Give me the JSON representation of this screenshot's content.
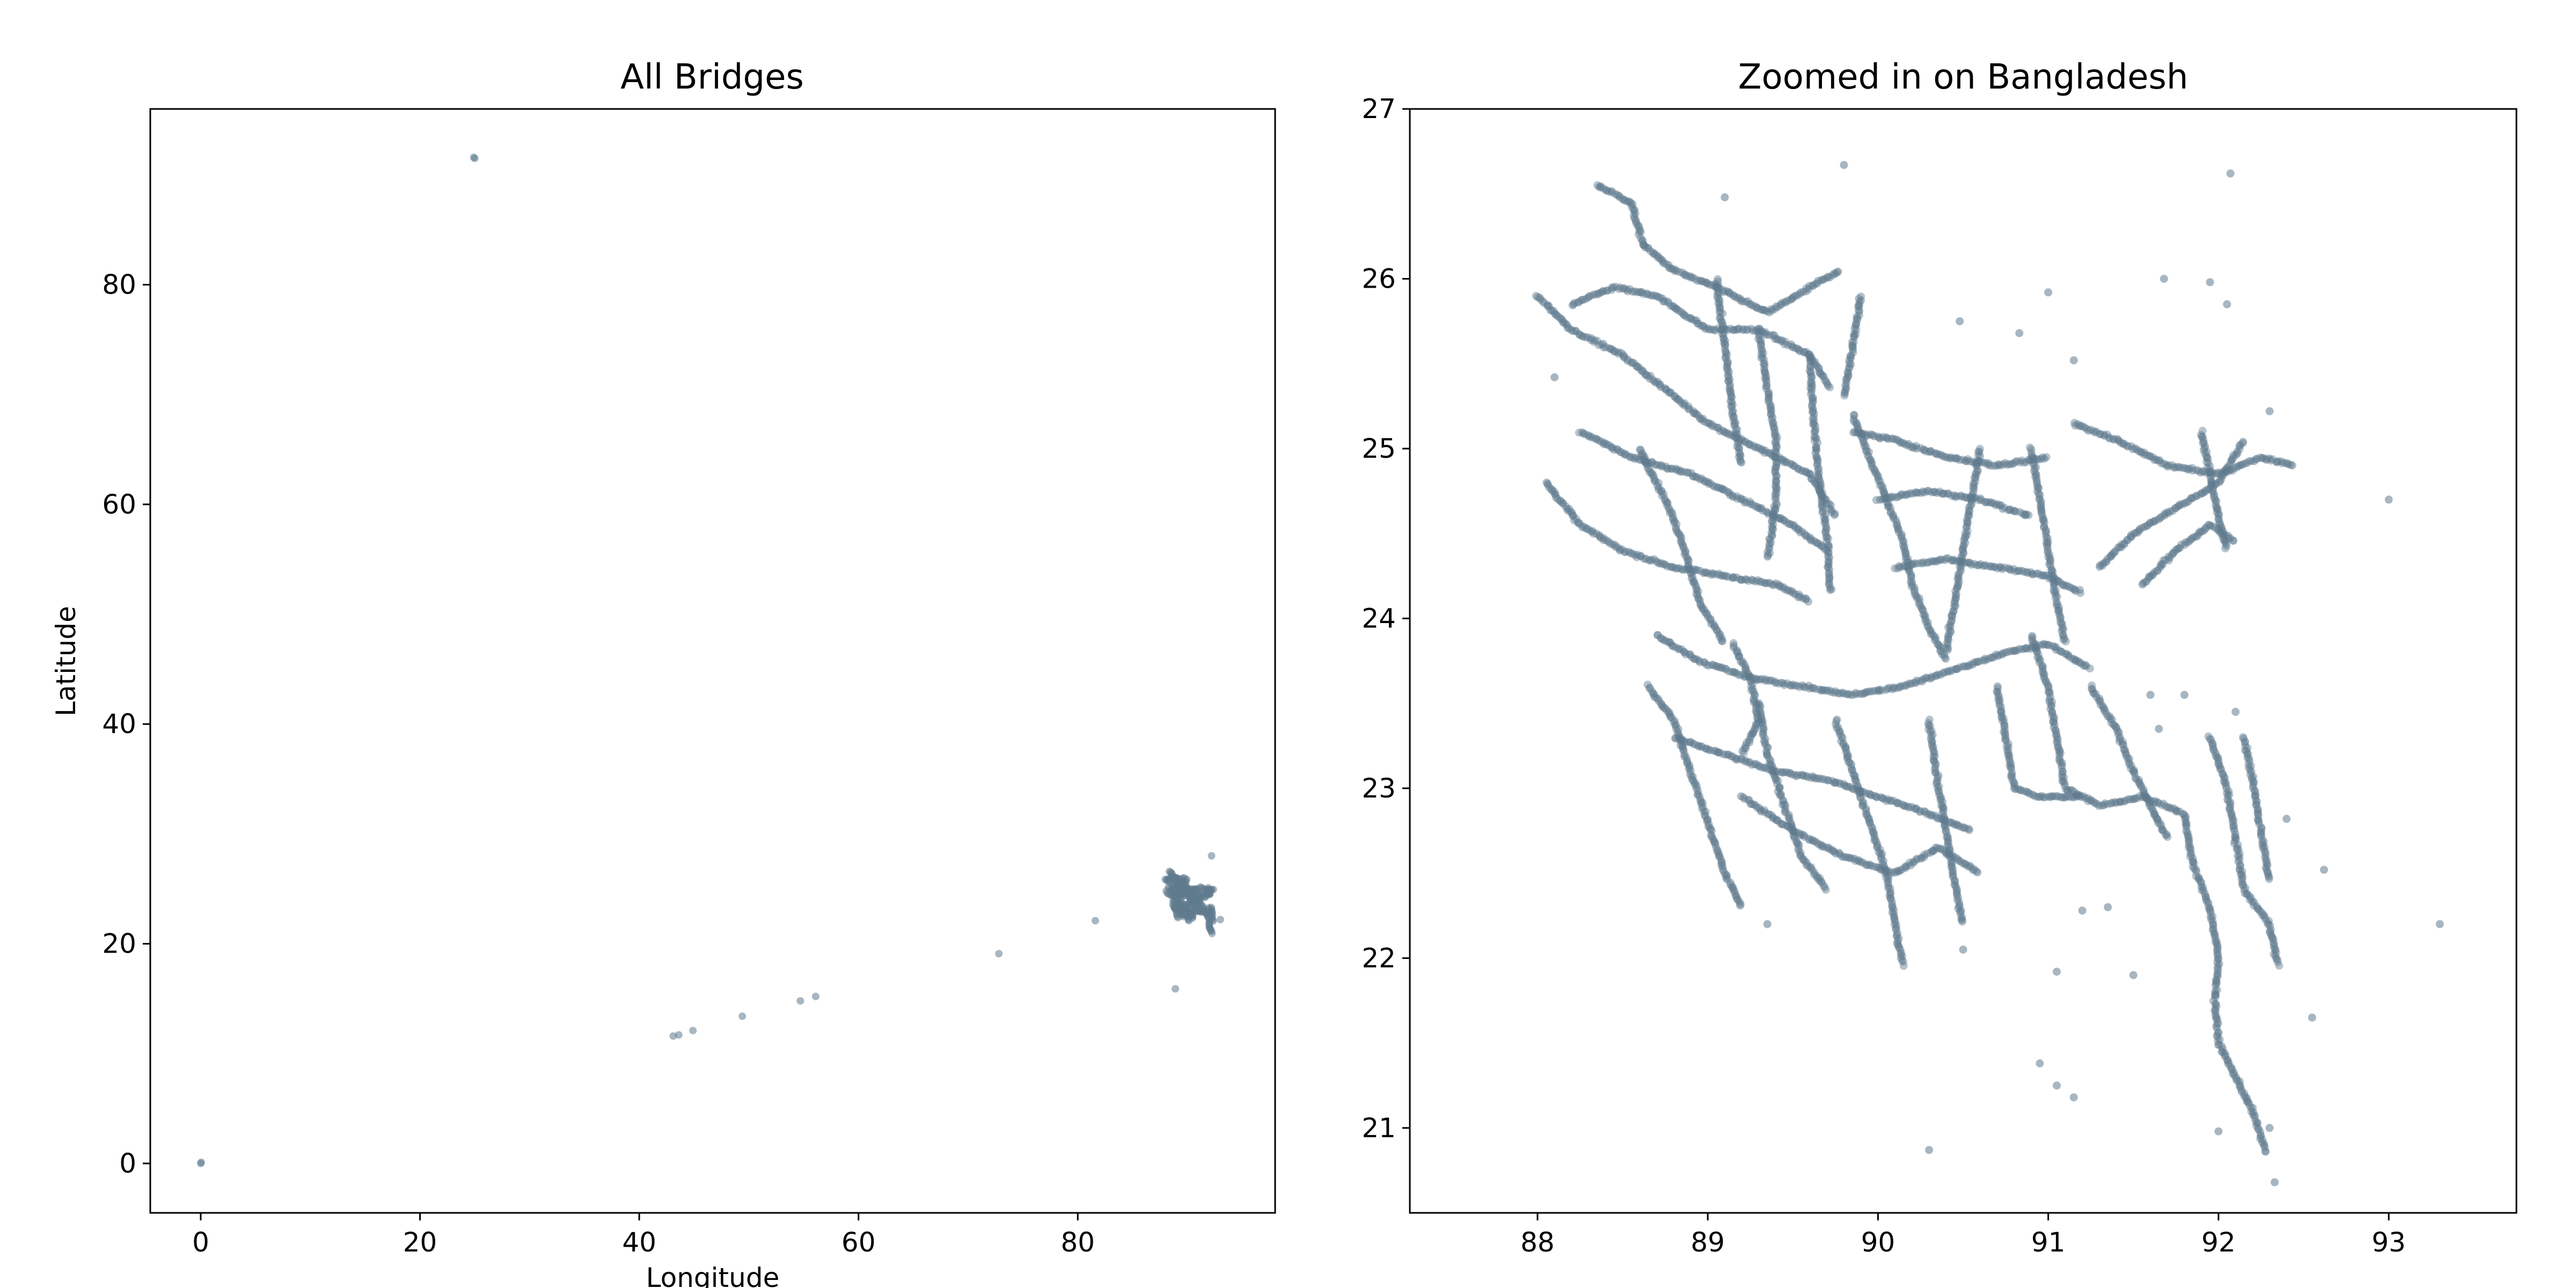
{
  "marker_color": "#5f7a8e",
  "chart_data": [
    {
      "type": "scatter",
      "title": "All Bridges",
      "xlabel": "Longitude",
      "ylabel": "Latitude",
      "xlim": [
        -4.6,
        98.0
      ],
      "ylim": [
        -4.5,
        96.0
      ],
      "xticks": [
        0,
        20,
        40,
        60,
        80
      ],
      "yticks": [
        0,
        20,
        40,
        60,
        80
      ],
      "grid": false,
      "outliers": [
        {
          "x": 0.0,
          "y": 0.0
        },
        {
          "x": 0.05,
          "y": 0.1
        },
        {
          "x": 24.9,
          "y": 91.6
        },
        {
          "x": 25.0,
          "y": 91.5
        },
        {
          "x": 43.1,
          "y": 11.6
        },
        {
          "x": 43.6,
          "y": 11.7
        },
        {
          "x": 44.9,
          "y": 12.1
        },
        {
          "x": 49.4,
          "y": 13.4
        },
        {
          "x": 54.7,
          "y": 14.8
        },
        {
          "x": 56.1,
          "y": 15.2
        },
        {
          "x": 72.8,
          "y": 19.1
        },
        {
          "x": 81.6,
          "y": 22.1
        },
        {
          "x": 88.9,
          "y": 15.9
        },
        {
          "x": 92.2,
          "y": 28.0
        },
        {
          "x": 93.0,
          "y": 22.2
        }
      ]
    },
    {
      "type": "scatter",
      "title": "Zoomed in on Bangladesh",
      "xlabel": "",
      "ylabel": "",
      "xlim": [
        87.25,
        93.75
      ],
      "ylim": [
        20.5,
        27.0
      ],
      "xticks": [
        88,
        89,
        90,
        91,
        92,
        93
      ],
      "yticks": [
        21,
        22,
        23,
        24,
        25,
        26,
        27
      ],
      "grid": false,
      "road_network": [
        [
          [
            88.35,
            26.55
          ],
          [
            88.55,
            26.45
          ],
          [
            88.62,
            26.2
          ],
          [
            88.8,
            26.05
          ],
          [
            89.05,
            25.95
          ],
          [
            89.35,
            25.8
          ],
          [
            89.6,
            25.95
          ],
          [
            89.78,
            26.05
          ]
        ],
        [
          [
            88.2,
            25.85
          ],
          [
            88.45,
            25.95
          ],
          [
            88.7,
            25.9
          ],
          [
            89.0,
            25.7
          ],
          [
            89.3,
            25.7
          ],
          [
            89.6,
            25.55
          ],
          [
            89.72,
            25.35
          ]
        ],
        [
          [
            88.0,
            25.9
          ],
          [
            88.2,
            25.7
          ],
          [
            88.5,
            25.55
          ],
          [
            88.75,
            25.35
          ],
          [
            89.0,
            25.15
          ],
          [
            89.3,
            25.0
          ],
          [
            89.6,
            24.85
          ],
          [
            89.75,
            24.6
          ]
        ],
        [
          [
            88.25,
            25.1
          ],
          [
            88.55,
            24.95
          ],
          [
            88.9,
            24.85
          ],
          [
            89.2,
            24.7
          ],
          [
            89.5,
            24.55
          ],
          [
            89.7,
            24.4
          ]
        ],
        [
          [
            88.05,
            24.8
          ],
          [
            88.25,
            24.55
          ],
          [
            88.5,
            24.4
          ],
          [
            88.8,
            24.3
          ],
          [
            89.1,
            24.25
          ],
          [
            89.4,
            24.2
          ],
          [
            89.6,
            24.1
          ]
        ],
        [
          [
            88.6,
            25.0
          ],
          [
            88.75,
            24.7
          ],
          [
            88.85,
            24.45
          ],
          [
            88.95,
            24.1
          ],
          [
            89.1,
            23.85
          ]
        ],
        [
          [
            89.3,
            25.7
          ],
          [
            89.35,
            25.35
          ],
          [
            89.4,
            25.05
          ],
          [
            89.4,
            24.7
          ],
          [
            89.35,
            24.35
          ]
        ],
        [
          [
            89.05,
            26.0
          ],
          [
            89.1,
            25.6
          ],
          [
            89.15,
            25.2
          ],
          [
            89.2,
            24.9
          ]
        ],
        [
          [
            89.6,
            25.55
          ],
          [
            89.62,
            25.2
          ],
          [
            89.65,
            24.85
          ],
          [
            89.7,
            24.5
          ],
          [
            89.72,
            24.15
          ]
        ],
        [
          [
            88.7,
            23.9
          ],
          [
            88.95,
            23.75
          ],
          [
            89.25,
            23.65
          ],
          [
            89.55,
            23.6
          ],
          [
            89.85,
            23.55
          ],
          [
            90.15,
            23.6
          ],
          [
            90.45,
            23.7
          ],
          [
            90.75,
            23.8
          ],
          [
            91.0,
            23.85
          ],
          [
            91.25,
            23.7
          ]
        ],
        [
          [
            88.65,
            23.6
          ],
          [
            88.8,
            23.4
          ],
          [
            88.9,
            23.1
          ],
          [
            89.0,
            22.8
          ],
          [
            89.1,
            22.5
          ],
          [
            89.2,
            22.3
          ]
        ],
        [
          [
            88.8,
            23.3
          ],
          [
            89.1,
            23.2
          ],
          [
            89.4,
            23.1
          ],
          [
            89.7,
            23.05
          ],
          [
            90.0,
            22.95
          ],
          [
            90.3,
            22.85
          ],
          [
            90.55,
            22.75
          ]
        ],
        [
          [
            89.3,
            23.5
          ],
          [
            89.35,
            23.2
          ],
          [
            89.45,
            22.9
          ],
          [
            89.55,
            22.6
          ],
          [
            89.7,
            22.4
          ]
        ],
        [
          [
            89.75,
            23.4
          ],
          [
            89.85,
            23.1
          ],
          [
            89.95,
            22.8
          ],
          [
            90.05,
            22.5
          ],
          [
            90.1,
            22.2
          ],
          [
            90.15,
            21.95
          ]
        ],
        [
          [
            89.2,
            22.95
          ],
          [
            89.5,
            22.75
          ],
          [
            89.8,
            22.6
          ],
          [
            90.1,
            22.5
          ],
          [
            90.35,
            22.65
          ],
          [
            90.6,
            22.5
          ]
        ],
        [
          [
            90.3,
            23.4
          ],
          [
            90.35,
            23.05
          ],
          [
            90.4,
            22.75
          ],
          [
            90.45,
            22.45
          ],
          [
            90.5,
            22.2
          ]
        ],
        [
          [
            89.85,
            25.2
          ],
          [
            89.95,
            24.95
          ],
          [
            90.05,
            24.7
          ],
          [
            90.15,
            24.45
          ],
          [
            90.2,
            24.2
          ],
          [
            90.3,
            23.95
          ],
          [
            90.4,
            23.75
          ]
        ],
        [
          [
            89.85,
            25.1
          ],
          [
            90.1,
            25.05
          ],
          [
            90.4,
            24.95
          ],
          [
            90.7,
            24.9
          ],
          [
            91.0,
            24.95
          ]
        ],
        [
          [
            90.0,
            24.7
          ],
          [
            90.3,
            24.75
          ],
          [
            90.6,
            24.7
          ],
          [
            90.9,
            24.6
          ]
        ],
        [
          [
            90.1,
            24.3
          ],
          [
            90.4,
            24.35
          ],
          [
            90.7,
            24.3
          ],
          [
            91.0,
            24.25
          ],
          [
            91.2,
            24.15
          ]
        ],
        [
          [
            90.6,
            25.0
          ],
          [
            90.55,
            24.7
          ],
          [
            90.5,
            24.4
          ],
          [
            90.45,
            24.1
          ],
          [
            90.4,
            23.8
          ]
        ],
        [
          [
            90.9,
            25.0
          ],
          [
            90.95,
            24.7
          ],
          [
            91.0,
            24.4
          ],
          [
            91.05,
            24.1
          ],
          [
            91.1,
            23.85
          ]
        ],
        [
          [
            91.15,
            25.15
          ],
          [
            91.4,
            25.05
          ],
          [
            91.7,
            24.9
          ],
          [
            92.0,
            24.85
          ],
          [
            92.25,
            24.95
          ],
          [
            92.45,
            24.9
          ]
        ],
        [
          [
            91.3,
            24.3
          ],
          [
            91.5,
            24.5
          ],
          [
            91.75,
            24.65
          ],
          [
            92.0,
            24.8
          ],
          [
            92.15,
            25.05
          ]
        ],
        [
          [
            91.55,
            24.2
          ],
          [
            91.75,
            24.4
          ],
          [
            91.95,
            24.55
          ],
          [
            92.1,
            24.45
          ]
        ],
        [
          [
            91.9,
            25.1
          ],
          [
            91.95,
            24.85
          ],
          [
            92.0,
            24.6
          ],
          [
            92.05,
            24.4
          ]
        ],
        [
          [
            90.9,
            23.9
          ],
          [
            91.0,
            23.6
          ],
          [
            91.05,
            23.3
          ],
          [
            91.1,
            23.0
          ],
          [
            91.3,
            22.9
          ],
          [
            91.55,
            22.95
          ],
          [
            91.8,
            22.85
          ]
        ],
        [
          [
            90.7,
            23.6
          ],
          [
            90.75,
            23.3
          ],
          [
            90.8,
            23.0
          ],
          [
            90.95,
            22.95
          ],
          [
            91.2,
            22.95
          ]
        ],
        [
          [
            91.25,
            23.6
          ],
          [
            91.4,
            23.35
          ],
          [
            91.5,
            23.1
          ],
          [
            91.6,
            22.9
          ],
          [
            91.7,
            22.7
          ]
        ],
        [
          [
            91.8,
            22.85
          ],
          [
            91.85,
            22.55
          ],
          [
            91.95,
            22.3
          ],
          [
            92.0,
            22.0
          ],
          [
            91.98,
            21.75
          ],
          [
            92.0,
            21.5
          ],
          [
            92.1,
            21.3
          ],
          [
            92.2,
            21.1
          ],
          [
            92.28,
            20.85
          ]
        ],
        [
          [
            91.95,
            23.3
          ],
          [
            92.05,
            23.0
          ],
          [
            92.1,
            22.7
          ],
          [
            92.15,
            22.4
          ],
          [
            92.3,
            22.2
          ],
          [
            92.35,
            21.95
          ]
        ],
        [
          [
            92.15,
            23.3
          ],
          [
            92.2,
            23.05
          ],
          [
            92.25,
            22.75
          ],
          [
            92.3,
            22.45
          ]
        ],
        [
          [
            89.9,
            25.9
          ],
          [
            89.85,
            25.6
          ],
          [
            89.8,
            25.3
          ]
        ],
        [
          [
            89.15,
            23.85
          ],
          [
            89.25,
            23.65
          ],
          [
            89.3,
            23.4
          ],
          [
            89.2,
            23.2
          ]
        ]
      ],
      "scattered_points": [
        {
          "x": 88.1,
          "y": 25.42
        },
        {
          "x": 89.1,
          "y": 26.48
        },
        {
          "x": 89.8,
          "y": 26.67
        },
        {
          "x": 90.48,
          "y": 25.75
        },
        {
          "x": 90.83,
          "y": 25.68
        },
        {
          "x": 91.0,
          "y": 25.92
        },
        {
          "x": 91.15,
          "y": 25.52
        },
        {
          "x": 91.68,
          "y": 26.0
        },
        {
          "x": 91.95,
          "y": 25.98
        },
        {
          "x": 92.05,
          "y": 25.85
        },
        {
          "x": 92.07,
          "y": 26.62
        },
        {
          "x": 92.3,
          "y": 25.22
        },
        {
          "x": 93.0,
          "y": 24.7
        },
        {
          "x": 91.6,
          "y": 23.55
        },
        {
          "x": 91.8,
          "y": 23.55
        },
        {
          "x": 92.4,
          "y": 22.82
        },
        {
          "x": 92.62,
          "y": 22.52
        },
        {
          "x": 93.3,
          "y": 22.2
        },
        {
          "x": 92.55,
          "y": 21.65
        },
        {
          "x": 91.5,
          "y": 21.9
        },
        {
          "x": 91.2,
          "y": 22.28
        },
        {
          "x": 91.05,
          "y": 21.92
        },
        {
          "x": 90.3,
          "y": 20.87
        },
        {
          "x": 90.95,
          "y": 21.38
        },
        {
          "x": 91.05,
          "y": 21.25
        },
        {
          "x": 91.15,
          "y": 21.18
        },
        {
          "x": 92.0,
          "y": 20.98
        },
        {
          "x": 89.35,
          "y": 22.2
        },
        {
          "x": 90.5,
          "y": 22.05
        },
        {
          "x": 91.35,
          "y": 22.3
        },
        {
          "x": 91.65,
          "y": 23.35
        },
        {
          "x": 92.1,
          "y": 23.45
        },
        {
          "x": 92.3,
          "y": 21.0
        },
        {
          "x": 92.33,
          "y": 20.68
        }
      ]
    }
  ]
}
